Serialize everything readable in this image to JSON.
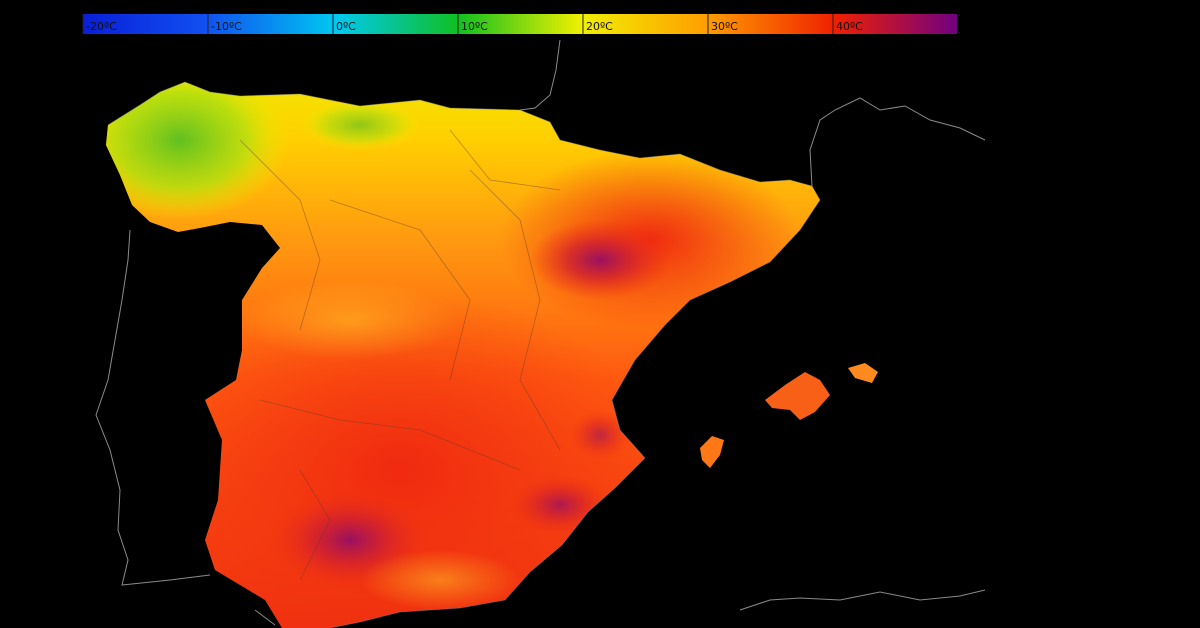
{
  "legend": {
    "ticks": [
      "-20ºC",
      "-10ºC",
      "0ºC",
      "10ºC",
      "20ºC",
      "30ºC",
      "40ºC"
    ]
  }
}
